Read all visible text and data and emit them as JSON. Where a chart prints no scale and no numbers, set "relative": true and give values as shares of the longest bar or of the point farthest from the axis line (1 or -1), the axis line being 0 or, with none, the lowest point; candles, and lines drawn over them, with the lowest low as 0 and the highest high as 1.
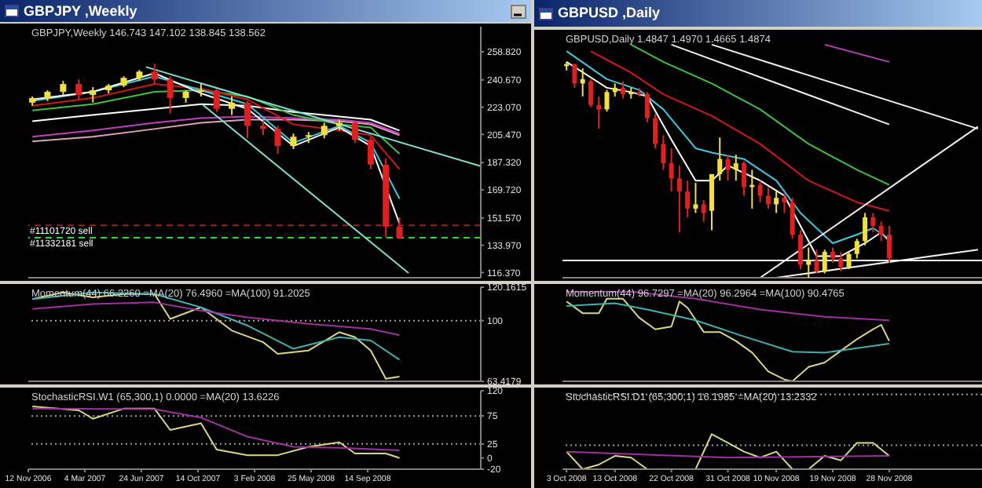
{
  "chart_data": [
    {
      "type": "candlestick",
      "title": "GBPJPY ,Weekly",
      "subtitle": "GBPJPY,Weekly  146.743 147.102 138.845 138.562",
      "x": [
        "2006-11-20",
        "2006-12-20",
        "2007-01-20",
        "2007-02-20",
        "2007-03-20",
        "2007-04-20",
        "2007-05-20",
        "2007-06-20",
        "2007-07-20",
        "2007-08-20",
        "2007-09-20",
        "2007-10-20",
        "2007-11-20",
        "2007-12-20",
        "2008-01-20",
        "2008-02-20",
        "2008-03-20",
        "2008-04-20",
        "2008-05-20",
        "2008-06-20",
        "2008-07-20",
        "2008-08-20",
        "2008-09-20",
        "2008-10-20",
        "2008-11-16"
      ],
      "ohlc": [
        [
          226,
          230,
          224,
          229
        ],
        [
          229,
          234,
          227,
          233
        ],
        [
          233,
          240,
          231,
          238
        ],
        [
          238,
          241,
          228,
          231
        ],
        [
          231,
          236,
          226,
          234
        ],
        [
          234,
          238,
          232,
          237
        ],
        [
          237,
          243,
          236,
          242
        ],
        [
          242,
          247,
          240,
          246
        ],
        [
          246,
          251,
          238,
          241
        ],
        [
          241,
          243,
          219,
          229
        ],
        [
          229,
          234,
          226,
          233
        ],
        [
          233,
          238,
          230,
          234
        ],
        [
          234,
          235,
          220,
          222
        ],
        [
          222,
          230,
          218,
          226
        ],
        [
          226,
          227,
          203,
          211
        ],
        [
          211,
          214,
          205,
          209
        ],
        [
          209,
          211,
          193,
          198
        ],
        [
          198,
          206,
          196,
          204
        ],
        [
          204,
          207,
          200,
          205
        ],
        [
          205,
          213,
          203,
          211
        ],
        [
          211,
          215,
          208,
          213
        ],
        [
          213,
          214,
          200,
          202
        ],
        [
          202,
          204,
          183,
          186
        ],
        [
          186,
          190,
          139,
          146
        ],
        [
          146,
          152,
          138,
          138.562
        ]
      ],
      "colors": [
        "#f0e040",
        "#f0e040",
        "#f0e040",
        "#e02020",
        "#f0e040",
        "#f0e040",
        "#f0e040",
        "#f0e040",
        "#e02020",
        "#e02020",
        "#f0e040",
        "#f0e040",
        "#e02020",
        "#f0e040",
        "#e02020",
        "#e02020",
        "#e02020",
        "#f0e040",
        "#f0e040",
        "#f0e040",
        "#f0e040",
        "#e02020",
        "#e02020",
        "#e02020",
        "#e02020"
      ],
      "series": [
        {
          "type": "line",
          "color": "#ffffff",
          "x": [
            "2006-11-20",
            "2007-03-20",
            "2007-07-20",
            "2007-10-20",
            "2008-01-20",
            "2008-04-20",
            "2008-07-20",
            "2008-09-20",
            "2008-11-16"
          ],
          "values": [
            214,
            218,
            222,
            225,
            224,
            220,
            217,
            215,
            208
          ]
        },
        {
          "type": "line",
          "color": "#e0a0c0",
          "x": [
            "2006-11-20",
            "2007-03-20",
            "2007-07-20",
            "2007-10-20",
            "2008-01-20",
            "2008-04-20",
            "2008-07-20",
            "2008-09-20",
            "2008-11-16"
          ],
          "values": [
            201,
            204,
            209,
            213,
            215,
            215,
            214,
            212,
            205
          ]
        },
        {
          "type": "line",
          "color": "#c040c0",
          "x": [
            "2006-11-20",
            "2007-03-20",
            "2007-07-20",
            "2007-10-20",
            "2008-01-20",
            "2008-04-20",
            "2008-07-20",
            "2008-09-20",
            "2008-11-16"
          ],
          "values": [
            204,
            208,
            213,
            216,
            217,
            216,
            215,
            213,
            206
          ]
        },
        {
          "type": "line",
          "color": "#40c040",
          "x": [
            "2006-11-20",
            "2007-03-20",
            "2007-07-20",
            "2007-10-20",
            "2008-01-20",
            "2008-04-20",
            "2008-07-20",
            "2008-09-20",
            "2008-11-16"
          ],
          "values": [
            221,
            225,
            233,
            234,
            230,
            218,
            212,
            210,
            193
          ]
        },
        {
          "type": "line",
          "color": "#d01818",
          "x": [
            "2006-11-20",
            "2007-03-20",
            "2007-07-20",
            "2007-10-20",
            "2008-01-20",
            "2008-04-20",
            "2008-07-20",
            "2008-09-20",
            "2008-11-16"
          ],
          "values": [
            224,
            229,
            238,
            235,
            228,
            212,
            208,
            205,
            183
          ]
        },
        {
          "type": "line",
          "color": "#40c8e0",
          "x": [
            "2006-11-20",
            "2007-03-20",
            "2007-07-20",
            "2007-10-20",
            "2008-01-20",
            "2008-04-20",
            "2008-07-20",
            "2008-09-20",
            "2008-11-16"
          ],
          "values": [
            227,
            233,
            243,
            234,
            225,
            200,
            211,
            200,
            164
          ]
        },
        {
          "type": "line",
          "color": "#f8f8f8",
          "x": [
            "2006-11-20",
            "2007-03-20",
            "2007-07-20",
            "2007-10-20",
            "2008-01-20",
            "2008-04-20",
            "2008-07-20",
            "2008-09-20",
            "2008-11-16"
          ],
          "values": [
            228,
            233,
            245,
            232,
            222,
            198,
            210,
            198,
            148
          ]
        },
        {
          "type": "line",
          "color": "#80e0d0",
          "x": [
            "2007-07-03",
            "2009-04-26"
          ],
          "values": [
            249,
            185
          ]
        },
        {
          "type": "line",
          "color": "#80e0d0",
          "x": [
            "2007-10-22",
            "2008-12-04"
          ],
          "values": [
            225,
            116
          ]
        }
      ],
      "xlim": [
        "2006-11-12",
        "2009-04-26"
      ],
      "ylim": [
        113,
        275
      ],
      "yticks": [
        {
          "value": 258.82,
          "label": "258.820"
        },
        {
          "value": 240.67,
          "label": "240.670"
        },
        {
          "value": 223.07,
          "label": "223.070"
        },
        {
          "value": 205.47,
          "label": "205.470"
        },
        {
          "value": 187.32,
          "label": "187.320"
        },
        {
          "value": 169.72,
          "label": "169.720"
        },
        {
          "value": 151.57,
          "label": "151.570"
        },
        {
          "value": 133.97,
          "label": "133.970"
        },
        {
          "value": 116.37,
          "label": "116.370"
        }
      ],
      "ref_lines": [
        {
          "axis": "y",
          "value": 146.8,
          "label": "#11101720 sell",
          "color": "#a02020",
          "line_style": "dashed"
        },
        {
          "axis": "y",
          "value": 138.8,
          "label": "#11332181 sell",
          "color": "#20e020",
          "line_style": "dashed"
        }
      ],
      "tick_labels": "y"
    },
    {
      "type": "line",
      "title": "Momentum(44) 66.2260 =MA(20) 76.4960 =MA(100) 91.2025",
      "series": [
        {
          "color": "#d8d880",
          "x": [
            "2006-11-20",
            "2007-01-20",
            "2007-03-20",
            "2007-05-20",
            "2007-07-20",
            "2007-08-20",
            "2007-10-20",
            "2007-12-20",
            "2008-02-20",
            "2008-03-20",
            "2008-05-20",
            "2008-07-20",
            "2008-08-20",
            "2008-09-20",
            "2008-10-20",
            "2008-11-16"
          ],
          "values": [
            113,
            117,
            114,
            116,
            116,
            101,
            108,
            94,
            87,
            80,
            82,
            93,
            90,
            82,
            65,
            66.226
          ]
        },
        {
          "color": "#40b0b0",
          "x": [
            "2006-11-20",
            "2007-03-20",
            "2007-07-20",
            "2007-10-20",
            "2008-01-20",
            "2008-04-20",
            "2008-07-20",
            "2008-09-20",
            "2008-11-16"
          ],
          "values": [
            113,
            117,
            116,
            108,
            97,
            83,
            90,
            88,
            76.496
          ]
        },
        {
          "color": "#a030a0",
          "x": [
            "2006-11-20",
            "2007-03-20",
            "2007-07-20",
            "2007-10-20",
            "2008-01-20",
            "2008-05-20",
            "2008-09-20",
            "2008-11-16"
          ],
          "values": [
            107,
            110,
            111,
            106,
            102,
            98,
            95,
            91.2025
          ]
        }
      ],
      "xlim": [
        "2006-11-12",
        "2009-04-26"
      ],
      "ylim": [
        63.4179,
        120.1615
      ],
      "yticks": [
        120.1615,
        100,
        63.4179
      ],
      "ref_lines": [
        {
          "axis": "y",
          "value": 100,
          "color": "#a0a0a0",
          "line_style": "dotted"
        }
      ],
      "tick_labels": "y"
    },
    {
      "type": "line",
      "title": "StochasticRSI.W1 (65,300,1) 0.0000 =MA(20) 13.6226",
      "series": [
        {
          "color": "#d8d880",
          "x": [
            "2006-11-20",
            "2007-02-20",
            "2007-03-20",
            "2007-05-20",
            "2007-07-20",
            "2007-08-20",
            "2007-10-20",
            "2007-11-20",
            "2008-01-20",
            "2008-03-20",
            "2008-05-20",
            "2008-07-20",
            "2008-08-20",
            "2008-10-20",
            "2008-11-16"
          ],
          "values": [
            92,
            85,
            70,
            88,
            88,
            50,
            62,
            15,
            5,
            5,
            20,
            28,
            8,
            8,
            0
          ]
        },
        {
          "color": "#a030a0",
          "x": [
            "2006-11-20",
            "2007-07-20",
            "2007-10-20",
            "2008-01-20",
            "2008-04-20",
            "2008-07-20",
            "2008-11-16"
          ],
          "values": [
            88,
            87,
            72,
            38,
            20,
            18,
            13.6226
          ]
        }
      ],
      "xlim": [
        "2006-11-12",
        "2009-04-26"
      ],
      "xticks": [
        {
          "value": "2006-11-12",
          "label": "12 Nov 2006"
        },
        {
          "value": "2007-03-04",
          "label": "4 Mar 2007"
        },
        {
          "value": "2007-06-24",
          "label": "24 Jun 2007"
        },
        {
          "value": "2007-10-14",
          "label": "14 Oct 2007"
        },
        {
          "value": "2008-02-03",
          "label": "3 Feb 2008"
        },
        {
          "value": "2008-05-25",
          "label": "25 May 2008"
        },
        {
          "value": "2008-09-14",
          "label": "14 Sep 2008"
        }
      ],
      "ylim": [
        -20,
        120
      ],
      "yticks": [
        120,
        75,
        25,
        0,
        -20
      ],
      "ref_lines": [
        {
          "axis": "y",
          "value": 75,
          "color": "#a0a0a0",
          "line_style": "dotted"
        },
        {
          "axis": "y",
          "value": 25,
          "color": "#a0a0a0",
          "line_style": "dotted"
        }
      ]
    },
    {
      "type": "candlestick",
      "title": "GBPUSD ,Daily",
      "subtitle": "GBPUSD,Daily 1.4847 1.4970 1.4665 1.4874",
      "relative": true,
      "categories": [
        null,
        null,
        null,
        null,
        null,
        null,
        null,
        null,
        null,
        null,
        null,
        null,
        null,
        null,
        null,
        null,
        null,
        null,
        null,
        null,
        null,
        null,
        null,
        null,
        null,
        null,
        null,
        null,
        null,
        null,
        null,
        null,
        null,
        null,
        null,
        null,
        null,
        null,
        null,
        null,
        null,
        null,
        null,
        null,
        null,
        null,
        null,
        null,
        null,
        null,
        null,
        null
      ],
      "ohlc": [
        [
          0.98,
          1.0,
          0.96,
          0.99
        ],
        [
          0.99,
          0.99,
          0.88,
          0.9
        ],
        [
          0.9,
          0.97,
          0.84,
          0.92
        ],
        [
          0.91,
          0.92,
          0.79,
          0.8
        ],
        [
          0.8,
          0.84,
          0.69,
          0.78
        ],
        [
          0.78,
          0.87,
          0.77,
          0.86
        ],
        [
          0.86,
          0.9,
          0.84,
          0.88
        ],
        [
          0.88,
          0.91,
          0.83,
          0.85
        ],
        [
          0.85,
          0.88,
          0.83,
          0.86
        ],
        [
          0.86,
          0.88,
          0.84,
          0.85
        ],
        [
          0.85,
          0.86,
          0.72,
          0.74
        ],
        [
          0.74,
          0.76,
          0.6,
          0.62
        ],
        [
          0.62,
          0.66,
          0.5,
          0.53
        ],
        [
          0.53,
          0.6,
          0.4,
          0.46
        ],
        [
          0.46,
          0.52,
          0.21,
          0.4
        ],
        [
          0.4,
          0.45,
          0.28,
          0.32
        ],
        [
          0.32,
          0.44,
          0.3,
          0.34
        ],
        [
          0.34,
          0.36,
          0.26,
          0.3
        ],
        [
          0.31,
          0.48,
          0.22,
          0.48
        ],
        [
          0.48,
          0.65,
          0.45,
          0.55
        ],
        [
          0.55,
          0.57,
          0.45,
          0.5
        ],
        [
          0.5,
          0.57,
          0.45,
          0.53
        ],
        [
          0.53,
          0.54,
          0.38,
          0.42
        ],
        [
          0.42,
          0.5,
          0.32,
          0.43
        ],
        [
          0.43,
          0.45,
          0.35,
          0.38
        ],
        [
          0.38,
          0.42,
          0.32,
          0.34
        ],
        [
          0.34,
          0.4,
          0.3,
          0.37
        ],
        [
          0.37,
          0.39,
          0.3,
          0.35
        ],
        [
          0.35,
          0.37,
          0.18,
          0.2
        ],
        [
          0.2,
          0.22,
          0.04,
          0.06
        ],
        [
          0.06,
          0.14,
          0.0,
          0.08
        ],
        [
          0.08,
          0.13,
          0.02,
          0.03
        ],
        [
          0.03,
          0.13,
          0.02,
          0.12
        ],
        [
          0.12,
          0.14,
          0.07,
          0.09
        ],
        [
          0.09,
          0.12,
          0.03,
          0.05
        ],
        [
          0.05,
          0.12,
          0.04,
          0.11
        ],
        [
          0.11,
          0.18,
          0.09,
          0.17
        ],
        [
          0.17,
          0.3,
          0.15,
          0.28
        ],
        [
          0.28,
          0.3,
          0.21,
          0.24
        ],
        [
          0.24,
          0.26,
          0.17,
          0.2
        ],
        [
          0.2,
          0.24,
          0.07,
          0.09
        ],
        null,
        null,
        null,
        null,
        null,
        null,
        null,
        null,
        null,
        null,
        null
      ],
      "colors": [
        "#f0e040",
        "#e02020",
        "#f0e040",
        "#e02020",
        "#e02020",
        "#f0e040",
        "#f0e040",
        "#e02020",
        "#f0e040",
        "#e02020",
        "#e02020",
        "#e02020",
        "#e02020",
        "#e02020",
        "#e02020",
        "#e02020",
        "#f0e040",
        "#e02020",
        "#f0e040",
        "#f0e040",
        "#e02020",
        "#f0e040",
        "#e02020",
        "#f0e040",
        "#e02020",
        "#e02020",
        "#f0e040",
        "#e02020",
        "#e02020",
        "#e02020",
        "#f0e040",
        "#e02020",
        "#f0e040",
        "#e02020",
        "#e02020",
        "#f0e040",
        "#f0e040",
        "#f0e040",
        "#e02020",
        "#e02020",
        "#e02020",
        null,
        null,
        null,
        null,
        null,
        null,
        null,
        null,
        null,
        null,
        null
      ],
      "series": [
        {
          "type": "line",
          "color": "#ffffff",
          "values": [
            1.0,
            null,
            null,
            null,
            null,
            0.88,
            null,
            null,
            0.86,
            null,
            0.84,
            null,
            null,
            0.64,
            null,
            null,
            0.45,
            null,
            0.45,
            null,
            0.52,
            null,
            null,
            null,
            0.45,
            null,
            null,
            0.38,
            null,
            0.24,
            null,
            0.1,
            null,
            null,
            0.1,
            null,
            null,
            0.16,
            null,
            0.21,
            0.17,
            null,
            null,
            null,
            null,
            null,
            null,
            null,
            null,
            null,
            null,
            null
          ]
        },
        {
          "type": "line",
          "color": "#40c8e0",
          "values": [
            1.05,
            null,
            null,
            null,
            null,
            0.92,
            null,
            null,
            null,
            0.87,
            null,
            null,
            0.78,
            null,
            null,
            null,
            0.6,
            null,
            0.58,
            null,
            null,
            null,
            0.55,
            null,
            null,
            null,
            0.45,
            null,
            null,
            0.3,
            null,
            null,
            null,
            0.16,
            null,
            null,
            0.2,
            null,
            0.23,
            null,
            0.18,
            null,
            null,
            null,
            null,
            null,
            null,
            null,
            null,
            null,
            null,
            null
          ]
        },
        {
          "type": "line",
          "color": "#d01818",
          "values": [
            null,
            null,
            null,
            1.05,
            null,
            null,
            null,
            null,
            0.95,
            null,
            null,
            null,
            0.85,
            null,
            null,
            null,
            null,
            null,
            0.75,
            null,
            null,
            null,
            null,
            null,
            0.62,
            null,
            null,
            null,
            null,
            null,
            0.45,
            null,
            null,
            null,
            null,
            null,
            0.35,
            null,
            null,
            null,
            0.31,
            null,
            null,
            null,
            null,
            null,
            null,
            null,
            null,
            null,
            null,
            null
          ]
        },
        {
          "type": "line",
          "color": "#40c040",
          "values": [
            null,
            null,
            null,
            null,
            null,
            null,
            null,
            null,
            1.08,
            null,
            null,
            null,
            1.0,
            null,
            null,
            null,
            null,
            null,
            0.9,
            null,
            null,
            null,
            null,
            null,
            0.78,
            null,
            null,
            null,
            null,
            null,
            0.62,
            null,
            null,
            null,
            null,
            null,
            0.5,
            null,
            null,
            null,
            0.43,
            null,
            null,
            null,
            null,
            null,
            null,
            null,
            null,
            null,
            null,
            null
          ]
        },
        {
          "type": "line",
          "color": "#c040c0",
          "values": [
            null,
            null,
            null,
            null,
            null,
            null,
            null,
            null,
            null,
            null,
            null,
            null,
            null,
            null,
            null,
            null,
            null,
            null,
            null,
            null,
            null,
            null,
            null,
            null,
            null,
            null,
            null,
            null,
            null,
            null,
            null,
            null,
            1.08,
            null,
            null,
            null,
            null,
            null,
            null,
            null,
            1.0,
            null,
            null,
            null,
            null,
            null,
            null,
            null,
            null,
            null,
            null,
            null
          ]
        },
        {
          "type": "line",
          "color": "#f0f0f0",
          "values": [
            null,
            null,
            null,
            null,
            null,
            null,
            null,
            null,
            null,
            null,
            null,
            null,
            null,
            1.08,
            null,
            null,
            null,
            null,
            null,
            null,
            null,
            null,
            null,
            null,
            null,
            null,
            null,
            null,
            null,
            null,
            null,
            null,
            null,
            null,
            null,
            null,
            null,
            null,
            null,
            null,
            0.71,
            null,
            null,
            null,
            null,
            null,
            null,
            null,
            null,
            null,
            null,
            null
          ]
        },
        {
          "type": "line",
          "color": "#f0f0f0",
          "values": [
            null,
            null,
            null,
            null,
            null,
            null,
            null,
            null,
            null,
            null,
            null,
            null,
            null,
            null,
            null,
            null,
            null,
            null,
            1.08,
            null,
            null,
            null,
            null,
            null,
            null,
            null,
            null,
            null,
            null,
            null,
            null,
            null,
            null,
            null,
            null,
            null,
            null,
            null,
            null,
            null,
            null,
            null,
            null,
            null,
            null,
            null,
            null,
            null,
            null,
            null,
            null,
            0.69
          ]
        },
        {
          "type": "line",
          "color": "#f0f0f0",
          "values": [
            null,
            null,
            null,
            null,
            null,
            null,
            null,
            null,
            null,
            null,
            null,
            null,
            null,
            null,
            null,
            null,
            null,
            null,
            null,
            null,
            null,
            null,
            null,
            null,
            0,
            null,
            null,
            null,
            null,
            null,
            null,
            null,
            null,
            null,
            null,
            null,
            null,
            null,
            null,
            null,
            null,
            null,
            null,
            null,
            null,
            null,
            null,
            null,
            null,
            null,
            null,
            0.7
          ]
        },
        {
          "type": "line",
          "color": "#f0f0f0",
          "values": [
            null,
            null,
            null,
            null,
            null,
            null,
            null,
            null,
            null,
            null,
            null,
            null,
            null,
            null,
            null,
            null,
            null,
            null,
            null,
            null,
            null,
            null,
            null,
            null,
            null,
            null,
            0,
            null,
            null,
            null,
            null,
            null,
            null,
            null,
            null,
            null,
            null,
            null,
            null,
            null,
            null,
            null,
            null,
            null,
            null,
            null,
            null,
            null,
            null,
            null,
            null,
            0.13
          ]
        }
      ],
      "ref_lines": [
        {
          "axis": "y",
          "value": 0.08,
          "color": "#ffffff",
          "line_style": "solid"
        }
      ],
      "tick_labels": false
    },
    {
      "type": "line",
      "title": "Momentum(44) 96.7297 =MA(20) 96.2964 =MA(100) 90.4765",
      "relative": true,
      "categories": [
        null,
        null,
        null,
        null,
        null,
        null,
        null,
        null,
        null,
        null,
        null,
        null,
        null,
        null,
        null,
        null,
        null,
        null,
        null,
        null,
        null,
        null,
        null,
        null,
        null,
        null,
        null,
        null,
        null,
        null,
        null,
        null,
        null,
        null,
        null,
        null,
        null,
        null,
        null,
        null,
        null,
        null,
        null,
        null,
        null,
        null,
        null,
        null,
        null,
        null,
        null,
        null
      ],
      "series": [
        {
          "color": "#d8d880",
          "values": [
            0.89,
            null,
            0.76,
            null,
            0.76,
            0.92,
            null,
            0.92,
            null,
            0.71,
            null,
            0.58,
            null,
            0.61,
            0.89,
            0.82,
            null,
            0.55,
            null,
            0.55,
            null,
            0.45,
            null,
            0.32,
            null,
            0.11,
            null,
            0.02,
            0,
            null,
            0.16,
            null,
            0.21,
            null,
            0.34,
            null,
            0.47,
            null,
            0.58,
            0.63,
            0.45,
            null,
            null,
            null,
            null,
            null,
            null,
            null,
            null,
            null,
            null,
            null
          ]
        },
        {
          "color": "#40b0b0",
          "values": [
            0.84,
            null,
            null,
            null,
            null,
            null,
            0.87,
            null,
            null,
            null,
            0.8,
            null,
            null,
            null,
            null,
            null,
            0.68,
            null,
            null,
            null,
            null,
            null,
            0.5,
            null,
            null,
            null,
            null,
            null,
            0.33,
            null,
            null,
            null,
            0.32,
            null,
            null,
            null,
            0.37,
            null,
            null,
            null,
            0.42,
            null,
            null,
            null,
            null,
            null,
            null,
            null,
            null,
            null,
            null,
            null
          ]
        },
        {
          "color": "#a030a0",
          "values": [
            1.0,
            null,
            null,
            null,
            null,
            null,
            null,
            null,
            1.0,
            null,
            null,
            null,
            null,
            null,
            null,
            null,
            0.92,
            null,
            null,
            null,
            null,
            null,
            null,
            null,
            0.8,
            null,
            null,
            null,
            null,
            null,
            null,
            null,
            0.72,
            null,
            null,
            null,
            null,
            null,
            null,
            null,
            0.68,
            null,
            null,
            null,
            null,
            null,
            null,
            null,
            null,
            null,
            null,
            null
          ]
        }
      ],
      "tick_labels": false
    },
    {
      "type": "line",
      "title": "StochasticRSI.D1 (65,300,1) 16.1985 =MA(20) 13.2332",
      "relative": true,
      "categories": [
        "3 Oct 2008",
        null,
        null,
        null,
        null,
        null,
        "13 Oct 2008",
        null,
        null,
        null,
        null,
        null,
        null,
        "22 Oct 2008",
        null,
        null,
        null,
        null,
        null,
        null,
        "31 Oct 2008",
        null,
        null,
        null,
        null,
        null,
        "10 Nov 2008",
        null,
        null,
        null,
        null,
        null,
        null,
        "19 Nov 2008",
        null,
        null,
        null,
        null,
        null,
        null,
        "28 Nov 2008",
        null,
        null,
        null,
        null,
        null,
        null,
        null,
        null,
        null,
        null,
        null
      ],
      "series": [
        {
          "color": "#d8d880",
          "values": [
            0.5,
            null,
            0,
            null,
            0.13,
            null,
            0.38,
            null,
            0.33,
            null,
            0,
            null,
            null,
            null,
            null,
            null,
            0,
            null,
            1.0,
            null,
            0.75,
            null,
            0.5,
            null,
            0.33,
            null,
            0.5,
            null,
            0,
            null,
            0,
            null,
            0.38,
            null,
            0.25,
            null,
            0.75,
            null,
            0.75,
            null,
            0.38,
            null,
            null,
            null,
            null,
            null,
            null,
            null,
            null,
            null,
            null,
            null
          ]
        },
        {
          "color": "#a030a0",
          "values": [
            0.5,
            null,
            null,
            null,
            null,
            null,
            null,
            null,
            null,
            null,
            null,
            null,
            null,
            null,
            null,
            null,
            null,
            null,
            null,
            null,
            0.33,
            null,
            null,
            null,
            null,
            null,
            null,
            null,
            null,
            null,
            null,
            null,
            null,
            null,
            null,
            null,
            null,
            null,
            null,
            null,
            0.38,
            null,
            null,
            null,
            null,
            null,
            null,
            null,
            null,
            null,
            null,
            null
          ]
        }
      ],
      "ref_lines": [
        {
          "axis": "y",
          "value": 2.13,
          "color": "#a0a0a0",
          "line_style": "dotted"
        },
        {
          "axis": "y",
          "value": 0.68,
          "color": "#a0a0a0",
          "line_style": "dotted"
        }
      ],
      "tick_labels": "x"
    }
  ]
}
